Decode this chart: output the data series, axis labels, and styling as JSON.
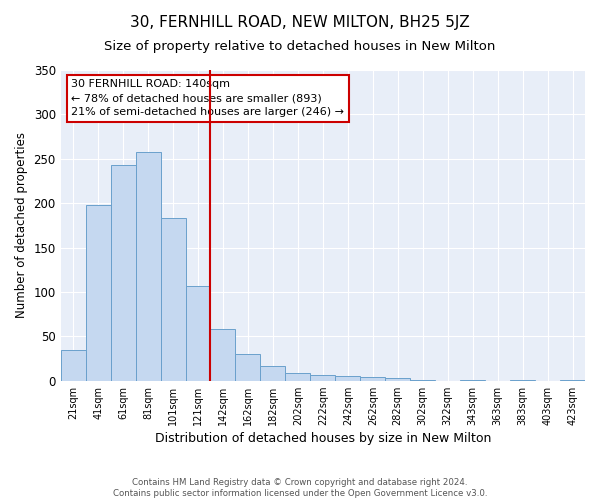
{
  "title": "30, FERNHILL ROAD, NEW MILTON, BH25 5JZ",
  "subtitle": "Size of property relative to detached houses in New Milton",
  "xlabel": "Distribution of detached houses by size in New Milton",
  "ylabel": "Number of detached properties",
  "categories": [
    "21sqm",
    "41sqm",
    "61sqm",
    "81sqm",
    "101sqm",
    "121sqm",
    "142sqm",
    "162sqm",
    "182sqm",
    "202sqm",
    "222sqm",
    "242sqm",
    "262sqm",
    "282sqm",
    "302sqm",
    "322sqm",
    "343sqm",
    "363sqm",
    "383sqm",
    "403sqm",
    "423sqm"
  ],
  "values": [
    35,
    198,
    243,
    258,
    183,
    107,
    58,
    30,
    17,
    9,
    6,
    5,
    4,
    3,
    1,
    0,
    1,
    0,
    1,
    0,
    1
  ],
  "bar_color": "#c5d8f0",
  "bar_edge_color": "#6aa0cc",
  "vline_color": "#cc0000",
  "annotation_text": "30 FERNHILL ROAD: 140sqm\n← 78% of detached houses are smaller (893)\n21% of semi-detached houses are larger (246) →",
  "annotation_box_color": "#cc0000",
  "ylim": [
    0,
    350
  ],
  "yticks": [
    0,
    50,
    100,
    150,
    200,
    250,
    300,
    350
  ],
  "plot_bg_color": "#e8eef8",
  "title_fontsize": 11,
  "subtitle_fontsize": 9.5,
  "xlabel_fontsize": 9,
  "ylabel_fontsize": 8.5,
  "footnote1": "Contains HM Land Registry data © Crown copyright and database right 2024.",
  "footnote2": "Contains public sector information licensed under the Open Government Licence v3.0."
}
